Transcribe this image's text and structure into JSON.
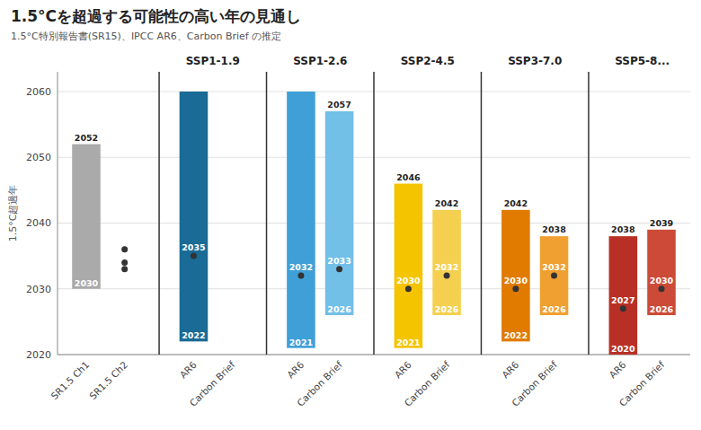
{
  "chart_data": {
    "type": "range_bar",
    "title": "1.5°Cを超過する可能性の高い年の見通し",
    "subtitle": "1.5°C特別報告書(SR15)、IPCC AR6、Carbon Brief の推定",
    "y_label": "1.5°C超過年",
    "categories": [
      "SR1.5 Ch1",
      "SR1.5 Ch2",
      "AR6",
      "Carbon Brief",
      "AR6",
      "Carbon Brief",
      "AR6",
      "Carbon Brief",
      "AR6",
      "Carbon Brief",
      "AR6",
      "Carbon Brief"
    ],
    "category_groups": [
      0,
      0,
      1,
      1,
      2,
      2,
      3,
      3,
      4,
      4,
      5,
      5
    ],
    "group_labels": [
      null,
      "SSP1-1.9",
      "SSP1-2.6",
      "SSP2-4.5",
      "SSP3-7.0",
      "SSP5-8..."
    ],
    "low": [
      2030,
      null,
      2022,
      null,
      2021,
      2026,
      2021,
      2026,
      2022,
      2026,
      2020,
      2026
    ],
    "high": [
      2052,
      null,
      2060,
      null,
      2060,
      2057,
      2046,
      2042,
      2042,
      2038,
      2038,
      2039
    ],
    "central": [
      null,
      null,
      2035,
      null,
      2032,
      2033,
      2030,
      2032,
      2030,
      2032,
      2027,
      2030
    ],
    "points": [
      null,
      [
        2036,
        2034,
        2033
      ],
      null,
      null,
      null,
      null,
      null,
      null,
      null,
      null,
      null,
      null
    ],
    "low_labels": [
      "2030",
      null,
      "2022",
      null,
      "2021",
      "2026",
      "2021",
      "2026",
      "2022",
      "2026",
      "2020",
      "2026"
    ],
    "high_labels": [
      "2052",
      null,
      null,
      null,
      null,
      "2057",
      "2046",
      "2042",
      "2042",
      "2038",
      "2038",
      "2039"
    ],
    "central_labels": [
      null,
      null,
      "2035",
      null,
      "2032",
      "2033",
      "2030",
      "2032",
      "2030",
      "2032",
      "2027",
      "2030"
    ],
    "colors": [
      "#aaaaaa",
      null,
      "#1a6b96",
      null,
      "#3fa0d8",
      "#72bfe8",
      "#f5c400",
      "#f5d050",
      "#e07b00",
      "#f0a030",
      "#b83025",
      "#cc4b38"
    ],
    "ylim": [
      2020,
      2063
    ],
    "yticks": [
      2020,
      2030,
      2040,
      2050,
      2060
    ],
    "grid": true
  }
}
